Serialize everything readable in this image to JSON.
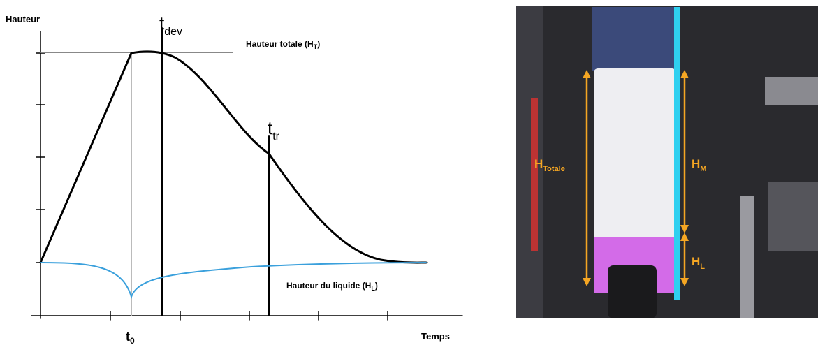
{
  "diagram": {
    "y_axis_label": "Hauteur",
    "x_axis_label": "Temps",
    "t0": {
      "base": "t",
      "sub": "0"
    },
    "t_dev": {
      "base": "t",
      "sub": "dev"
    },
    "t_tr": {
      "base": "t",
      "sub": "tr"
    },
    "total_height": {
      "base": "Hauteur totale (H",
      "sub": "T",
      "end": ")"
    },
    "liquid_height": {
      "base": "Hauteur du liquide (H",
      "sub": "L",
      "end": ")"
    }
  },
  "photo": {
    "total": {
      "base": "H",
      "sub": "Totale"
    },
    "foam": {
      "base": "H",
      "sub": "M"
    },
    "liquid": {
      "base": "H",
      "sub": "L"
    }
  }
}
